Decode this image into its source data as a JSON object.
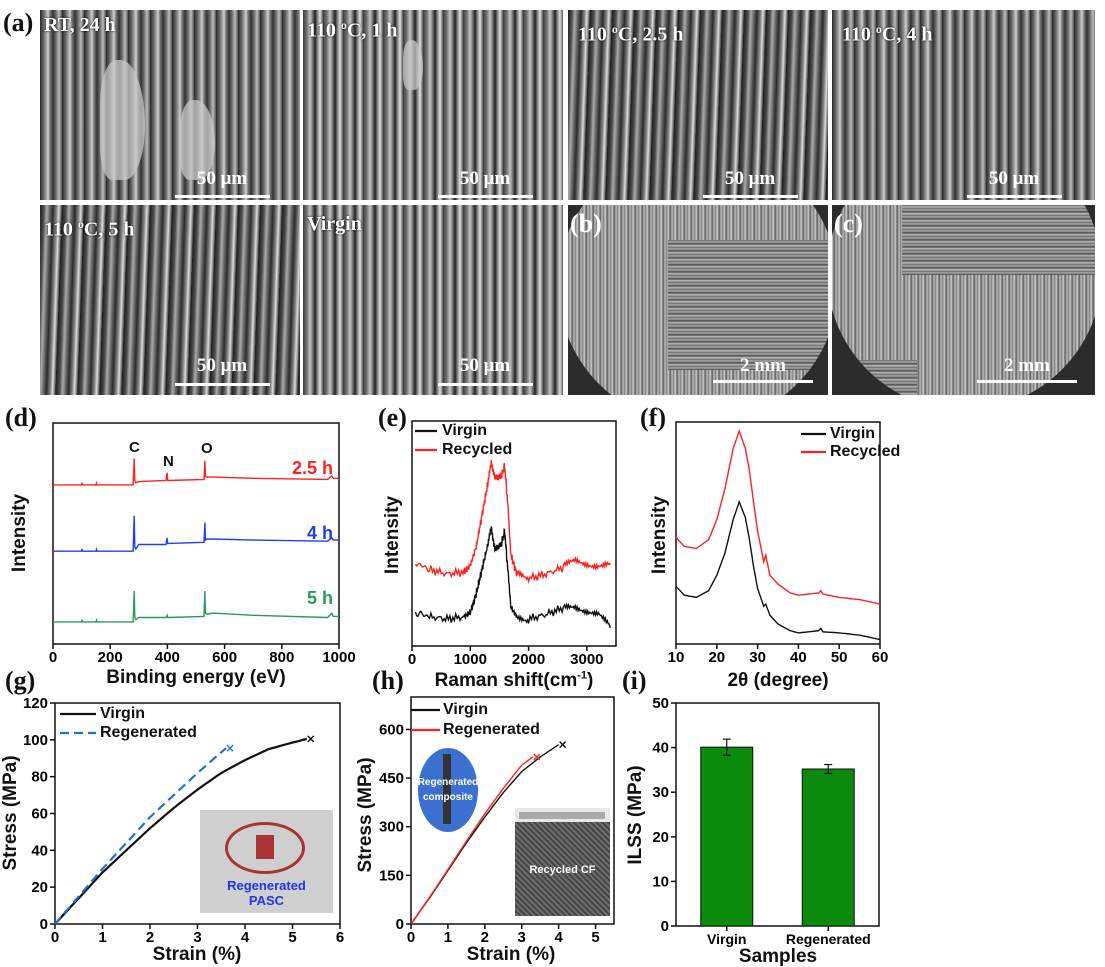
{
  "panel_labels": {
    "a": "(a)",
    "b": "(b)",
    "c": "(c)",
    "d": "(d)",
    "e": "(e)",
    "f": "(f)",
    "g": "(g)",
    "h": "(h)",
    "i": "(i)"
  },
  "sem_images": [
    {
      "label": "RT, 24 h",
      "deg": "",
      "rest": "",
      "scale": "50 μm"
    },
    {
      "label": "110 ",
      "deg": "o",
      "rest": "C, 1 h",
      "scale": "50 μm"
    },
    {
      "label": "110 ",
      "deg": "o",
      "rest": "C, 2.5 h",
      "scale": "50 μm"
    },
    {
      "label": "110 ",
      "deg": "o",
      "rest": "C, 4 h",
      "scale": "50 μm"
    },
    {
      "label": "110 ",
      "deg": "o",
      "rest": "C, 5 h",
      "scale": "50 μm"
    },
    {
      "label": "Virgin",
      "deg": "",
      "rest": "",
      "scale": "50 μm"
    }
  ],
  "photo_b": {
    "scale": "2 mm"
  },
  "photo_c": {
    "scale": "2 mm"
  },
  "colors": {
    "red": "#ff2020",
    "blue": "#1f3ff0",
    "green": "#2a9a5a",
    "dash_blue": "#1f6fe0",
    "bar": "#0b8a0b",
    "black": "#111111"
  },
  "chart_data": [
    {
      "id": "d",
      "type": "line",
      "title": "",
      "xlabel": "Binding energy (eV)",
      "ylabel": "Intensity",
      "xlim": [
        0,
        1000
      ],
      "ylim": [
        0,
        100
      ],
      "xticks": [
        0,
        200,
        400,
        600,
        800,
        1000
      ],
      "yticks": [],
      "peak_labels": [
        "C",
        "N",
        "O"
      ],
      "series": [
        {
          "name": "2.5 h",
          "color": "#ff2020",
          "x": [
            0,
            100,
            101,
            103,
            150,
            152,
            154,
            280,
            284,
            286,
            290,
            300,
            395,
            399,
            401,
            405,
            528,
            531,
            533,
            538,
            560,
            700,
            960,
            975,
            980,
            1000
          ],
          "y": [
            72,
            72,
            73,
            72,
            72,
            72.8,
            72,
            72,
            84,
            74,
            73,
            73.5,
            74,
            77.5,
            74,
            74,
            74.5,
            83,
            76,
            75.5,
            75.5,
            75,
            74.5,
            76,
            75,
            75
          ]
        },
        {
          "name": "4 h",
          "color": "#1f3ff0",
          "x": [
            0,
            100,
            101,
            103,
            150,
            152,
            154,
            280,
            284,
            286,
            290,
            300,
            395,
            399,
            401,
            405,
            528,
            531,
            533,
            538,
            560,
            700,
            960,
            975,
            980,
            1000
          ],
          "y": [
            42,
            42,
            43,
            42,
            42,
            42.8,
            42,
            42,
            58,
            44,
            43,
            45,
            45,
            48,
            45.5,
            45.5,
            46,
            55,
            47,
            47.5,
            47.5,
            47,
            46.5,
            48,
            47,
            47
          ]
        },
        {
          "name": "5 h",
          "color": "#2a9a5a",
          "x": [
            0,
            100,
            101,
            103,
            150,
            152,
            154,
            280,
            284,
            286,
            290,
            300,
            395,
            399,
            401,
            405,
            528,
            531,
            533,
            538,
            560,
            700,
            960,
            975,
            980,
            1000
          ],
          "y": [
            10,
            10,
            11,
            10,
            10,
            10.8,
            10,
            10,
            24,
            12,
            11,
            12,
            12,
            13,
            12,
            12,
            12.5,
            24,
            14,
            13.5,
            14,
            13,
            12,
            14,
            12.5,
            12.5
          ]
        }
      ]
    },
    {
      "id": "e",
      "type": "line",
      "xlabel": "Raman shift(cm",
      "xlabel_sup": "-1",
      "xlabel_end": ")",
      "ylabel": "Intensity",
      "xlim": [
        0,
        3500
      ],
      "ylim": [
        0,
        100
      ],
      "xticks": [
        0,
        1000,
        2000,
        3000
      ],
      "yticks": [],
      "series": [
        {
          "name": "Virgin",
          "color": "#111111",
          "x": [
            60,
            300,
            600,
            900,
            1000,
            1100,
            1200,
            1300,
            1360,
            1420,
            1480,
            1540,
            1590,
            1640,
            1700,
            1800,
            2000,
            2300,
            2600,
            2800,
            3000,
            3200,
            3400
          ],
          "y": [
            15,
            13,
            12,
            13,
            15,
            23,
            34,
            45,
            52,
            44,
            43,
            46,
            51,
            35,
            17,
            13,
            12,
            14,
            17,
            18,
            16,
            14,
            8
          ]
        },
        {
          "name": "Recycled",
          "color": "#ff2020",
          "x": [
            60,
            300,
            600,
            900,
            1000,
            1100,
            1200,
            1300,
            1360,
            1420,
            1480,
            1540,
            1590,
            1640,
            1700,
            1800,
            2000,
            2300,
            2600,
            2800,
            3000,
            3200,
            3400
          ],
          "y": [
            37,
            34,
            32,
            33,
            36,
            44,
            58,
            72,
            81,
            76,
            74,
            76,
            80,
            64,
            40,
            32,
            30,
            32,
            35,
            38,
            37,
            36,
            36
          ]
        }
      ]
    },
    {
      "id": "f",
      "type": "line",
      "xlabel": "2θ (degree)",
      "ylabel": "Intensity",
      "xlim": [
        10,
        60
      ],
      "ylim": [
        0,
        100
      ],
      "xticks": [
        10,
        20,
        30,
        40,
        50,
        60
      ],
      "yticks": [],
      "series": [
        {
          "name": "Virgin",
          "color": "#111111",
          "x": [
            10,
            12,
            15,
            18,
            20,
            22,
            24,
            25.5,
            27,
            28,
            29,
            30,
            31.5,
            32,
            33,
            35,
            38,
            40,
            45,
            45.5,
            46,
            50,
            55,
            60
          ],
          "y": [
            26,
            22,
            21,
            24,
            31,
            41,
            56,
            64,
            57,
            47,
            35,
            25,
            17,
            18,
            13,
            9,
            6,
            5,
            6,
            7,
            5.5,
            5,
            4,
            2
          ]
        },
        {
          "name": "Recycled",
          "color": "#ff2020",
          "x": [
            10,
            12,
            15,
            18,
            20,
            22,
            24,
            25.5,
            27,
            28,
            29,
            30,
            31.5,
            32,
            33,
            35,
            38,
            40,
            45,
            45.5,
            46,
            50,
            55,
            60
          ],
          "y": [
            48,
            44,
            43,
            47,
            56,
            70,
            88,
            96,
            88,
            78,
            64,
            51,
            37,
            40,
            31,
            27,
            23,
            22,
            23,
            24,
            22.5,
            21,
            20,
            18
          ]
        }
      ]
    },
    {
      "id": "g",
      "type": "line",
      "xlabel": "Strain (%)",
      "ylabel": "Stress (MPa)",
      "xlim": [
        0,
        6
      ],
      "ylim": [
        0,
        120
      ],
      "xticks": [
        0,
        1,
        2,
        3,
        4,
        5,
        6
      ],
      "yticks": [
        0,
        20,
        40,
        60,
        80,
        100,
        120
      ],
      "inset_text": [
        "Regenerated",
        "PASC"
      ],
      "series": [
        {
          "name": "Virgin",
          "color": "#111111",
          "dash": false,
          "x": [
            0,
            0.5,
            1,
            1.5,
            2,
            2.5,
            3,
            3.5,
            4,
            4.5,
            5,
            5.3
          ],
          "y": [
            0,
            14,
            28,
            40,
            52,
            63,
            73,
            82,
            89,
            95,
            98.5,
            100.5
          ]
        },
        {
          "name": "Regenerated",
          "color": "#1f6fe0",
          "dash": true,
          "x": [
            0,
            0.5,
            1,
            1.5,
            2,
            2.5,
            3,
            3.6
          ],
          "y": [
            0,
            15,
            30,
            44,
            58,
            70,
            82,
            95.5
          ]
        }
      ]
    },
    {
      "id": "h",
      "type": "line",
      "xlabel": "Strain (%)",
      "ylabel": "Stress (MPa)",
      "xlim": [
        0,
        5.5
      ],
      "ylim": [
        0,
        700
      ],
      "xticks": [
        0,
        1,
        2,
        3,
        4,
        5
      ],
      "yticks": [
        0,
        150,
        300,
        450,
        600
      ],
      "inset_text": [
        "Regenerated",
        "composite"
      ],
      "inset2_text": "Recycled CF",
      "series": [
        {
          "name": "Virgin",
          "color": "#111111",
          "x": [
            0,
            0.5,
            1,
            1.5,
            2,
            2.5,
            3,
            3.5,
            4
          ],
          "y": [
            0,
            80,
            165,
            250,
            330,
            405,
            470,
            515,
            553
          ]
        },
        {
          "name": "Regenerated",
          "color": "#ff2020",
          "x": [
            0,
            0.5,
            1,
            1.5,
            2,
            2.5,
            3,
            3.3
          ],
          "y": [
            0,
            82,
            168,
            255,
            340,
            418,
            490,
            515
          ]
        }
      ]
    },
    {
      "id": "i",
      "type": "bar",
      "xlabel": "Samples",
      "ylabel": "ILSS (MPa)",
      "ylim": [
        0,
        50
      ],
      "yticks": [
        0,
        10,
        20,
        30,
        40,
        50
      ],
      "categories": [
        "Virgin",
        "Regenerated"
      ],
      "values": [
        40.1,
        35.2
      ],
      "errors": [
        1.8,
        1.0
      ]
    }
  ]
}
